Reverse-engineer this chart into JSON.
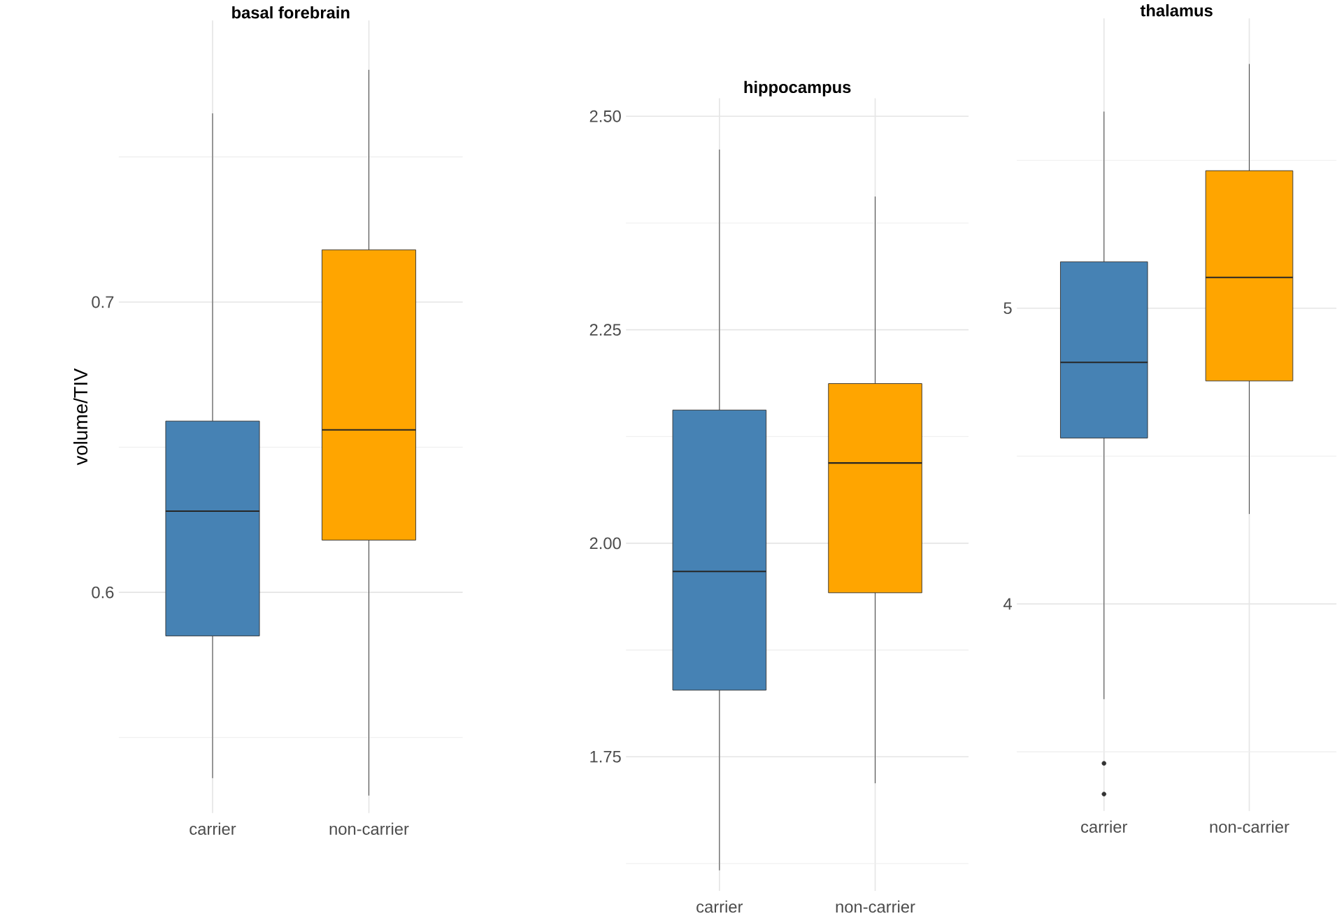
{
  "chart_data": [
    {
      "type": "box",
      "title": "basal forebrain",
      "ylabel": "volume/TIV",
      "categories": [
        "carrier",
        "non-carrier"
      ],
      "colors": [
        "#4682b4",
        "#ffa500"
      ],
      "grid": true,
      "ylim": [
        0.524,
        0.797
      ],
      "yticks": [
        {
          "value": 0.55,
          "label": null
        },
        0.6,
        {
          "value": 0.65,
          "label": null
        },
        0.7,
        {
          "value": 0.75,
          "label": null
        }
      ],
      "boxes": [
        {
          "low": 0.536,
          "q1": 0.585,
          "median": 0.628,
          "q3": 0.659,
          "high": 0.765
        },
        {
          "low": 0.53,
          "q1": 0.618,
          "median": 0.656,
          "q3": 0.718,
          "high": 0.78
        }
      ]
    },
    {
      "type": "box",
      "title": "hippocampus",
      "categories": [
        "carrier",
        "non-carrier"
      ],
      "colors": [
        "#4682b4",
        "#ffa500"
      ],
      "grid": true,
      "ylim": [
        1.593,
        2.521
      ],
      "yticks": [
        {
          "value": 1.625,
          "label": null
        },
        1.75,
        {
          "value": 1.875,
          "label": null
        },
        {
          "value": 2.0,
          "label": "2.00"
        },
        {
          "value": 2.125,
          "label": null
        },
        2.25,
        {
          "value": 2.375,
          "label": null
        },
        {
          "value": 2.5,
          "label": "2.50"
        }
      ],
      "boxes": [
        {
          "low": 1.617,
          "q1": 1.828,
          "median": 1.967,
          "q3": 2.156,
          "high": 2.461
        },
        {
          "low": 1.719,
          "q1": 1.942,
          "median": 2.094,
          "q3": 2.187,
          "high": 2.406
        }
      ]
    },
    {
      "type": "box",
      "title": "thalamus",
      "categories": [
        "carrier",
        "non-carrier"
      ],
      "colors": [
        "#4682b4",
        "#ffa500"
      ],
      "grid": true,
      "ylim": [
        3.3,
        5.98
      ],
      "yticks": [
        {
          "value": 3.5,
          "label": null
        },
        4,
        {
          "value": 4.5,
          "label": null
        },
        5,
        {
          "value": 5.5,
          "label": null
        }
      ],
      "boxes": [
        {
          "low": 3.678,
          "q1": 4.561,
          "median": 4.817,
          "q3": 5.157,
          "high": 5.665,
          "outliers": [
            3.461,
            3.357
          ]
        },
        {
          "low": 4.304,
          "q1": 4.754,
          "median": 5.104,
          "q3": 5.465,
          "high": 5.826
        }
      ]
    }
  ]
}
